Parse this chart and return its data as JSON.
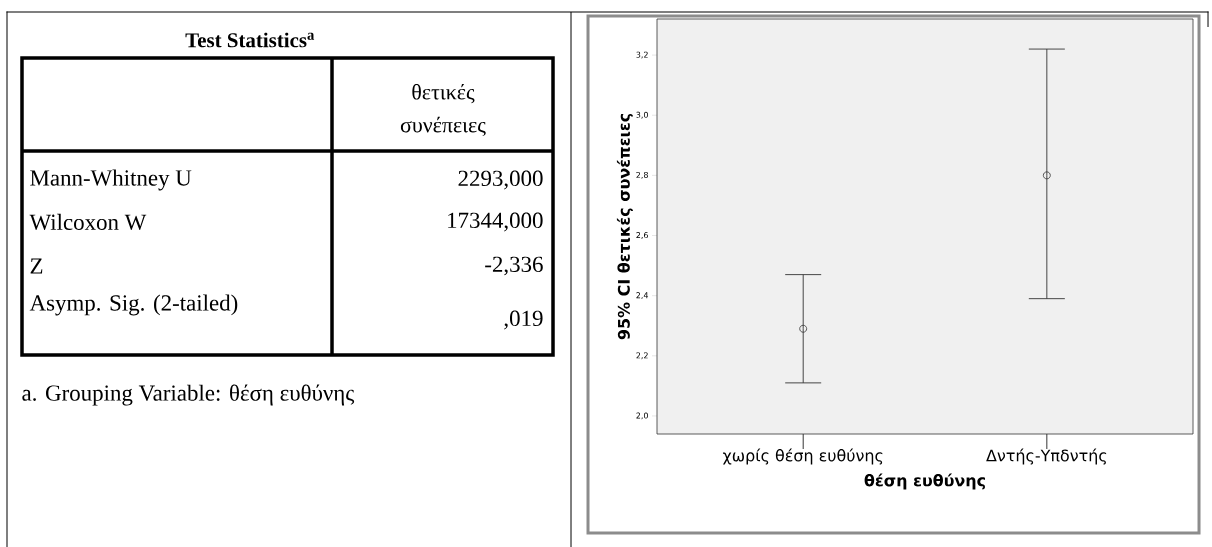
{
  "chart_data": [
    {
      "type": "other",
      "title": "Test Statistics$^{a}$",
      "subtitle": "θετικές συνέπειες",
      "categories": [
        "Mann-Whitney U",
        "Wilcoxon W",
        "Z",
        "Asymp. Sig. (2-tailed)"
      ],
      "annotations": [
        "2293,000",
        "17344,000",
        "-2,336",
        ",019",
        "a. Grouping Variable: θέση ευθύνης"
      ]
    },
    {
      "type": "scatter",
      "xlabel": "θέση ευθύνης",
      "ylabel": "95% CI θετικές συνέπειες",
      "categories": [
        "χωρίς θέση ευθύνης",
        "Δντής-Υπδντής"
      ],
      "series": [
        {
          "color": "#333333",
          "values": [
            2.29,
            2.8
          ],
          "errors": [
            [
              2.11,
              2.47
            ],
            [
              2.39,
              3.22
            ]
          ]
        }
      ],
      "ylim": [
        1.94,
        3.32
      ],
      "yticks": [
        {
          "value": 2.0,
          "label": "2,0"
        },
        {
          "value": 2.2,
          "label": "2,2"
        },
        {
          "value": 2.4,
          "label": "2,4"
        },
        {
          "value": 2.6,
          "label": "2,6"
        },
        {
          "value": 2.8,
          "label": "2,8"
        },
        {
          "value": 3.0,
          "label": "3,0"
        },
        {
          "value": 3.2,
          "label": "3,2"
        }
      ],
      "marker": "circle"
    }
  ]
}
